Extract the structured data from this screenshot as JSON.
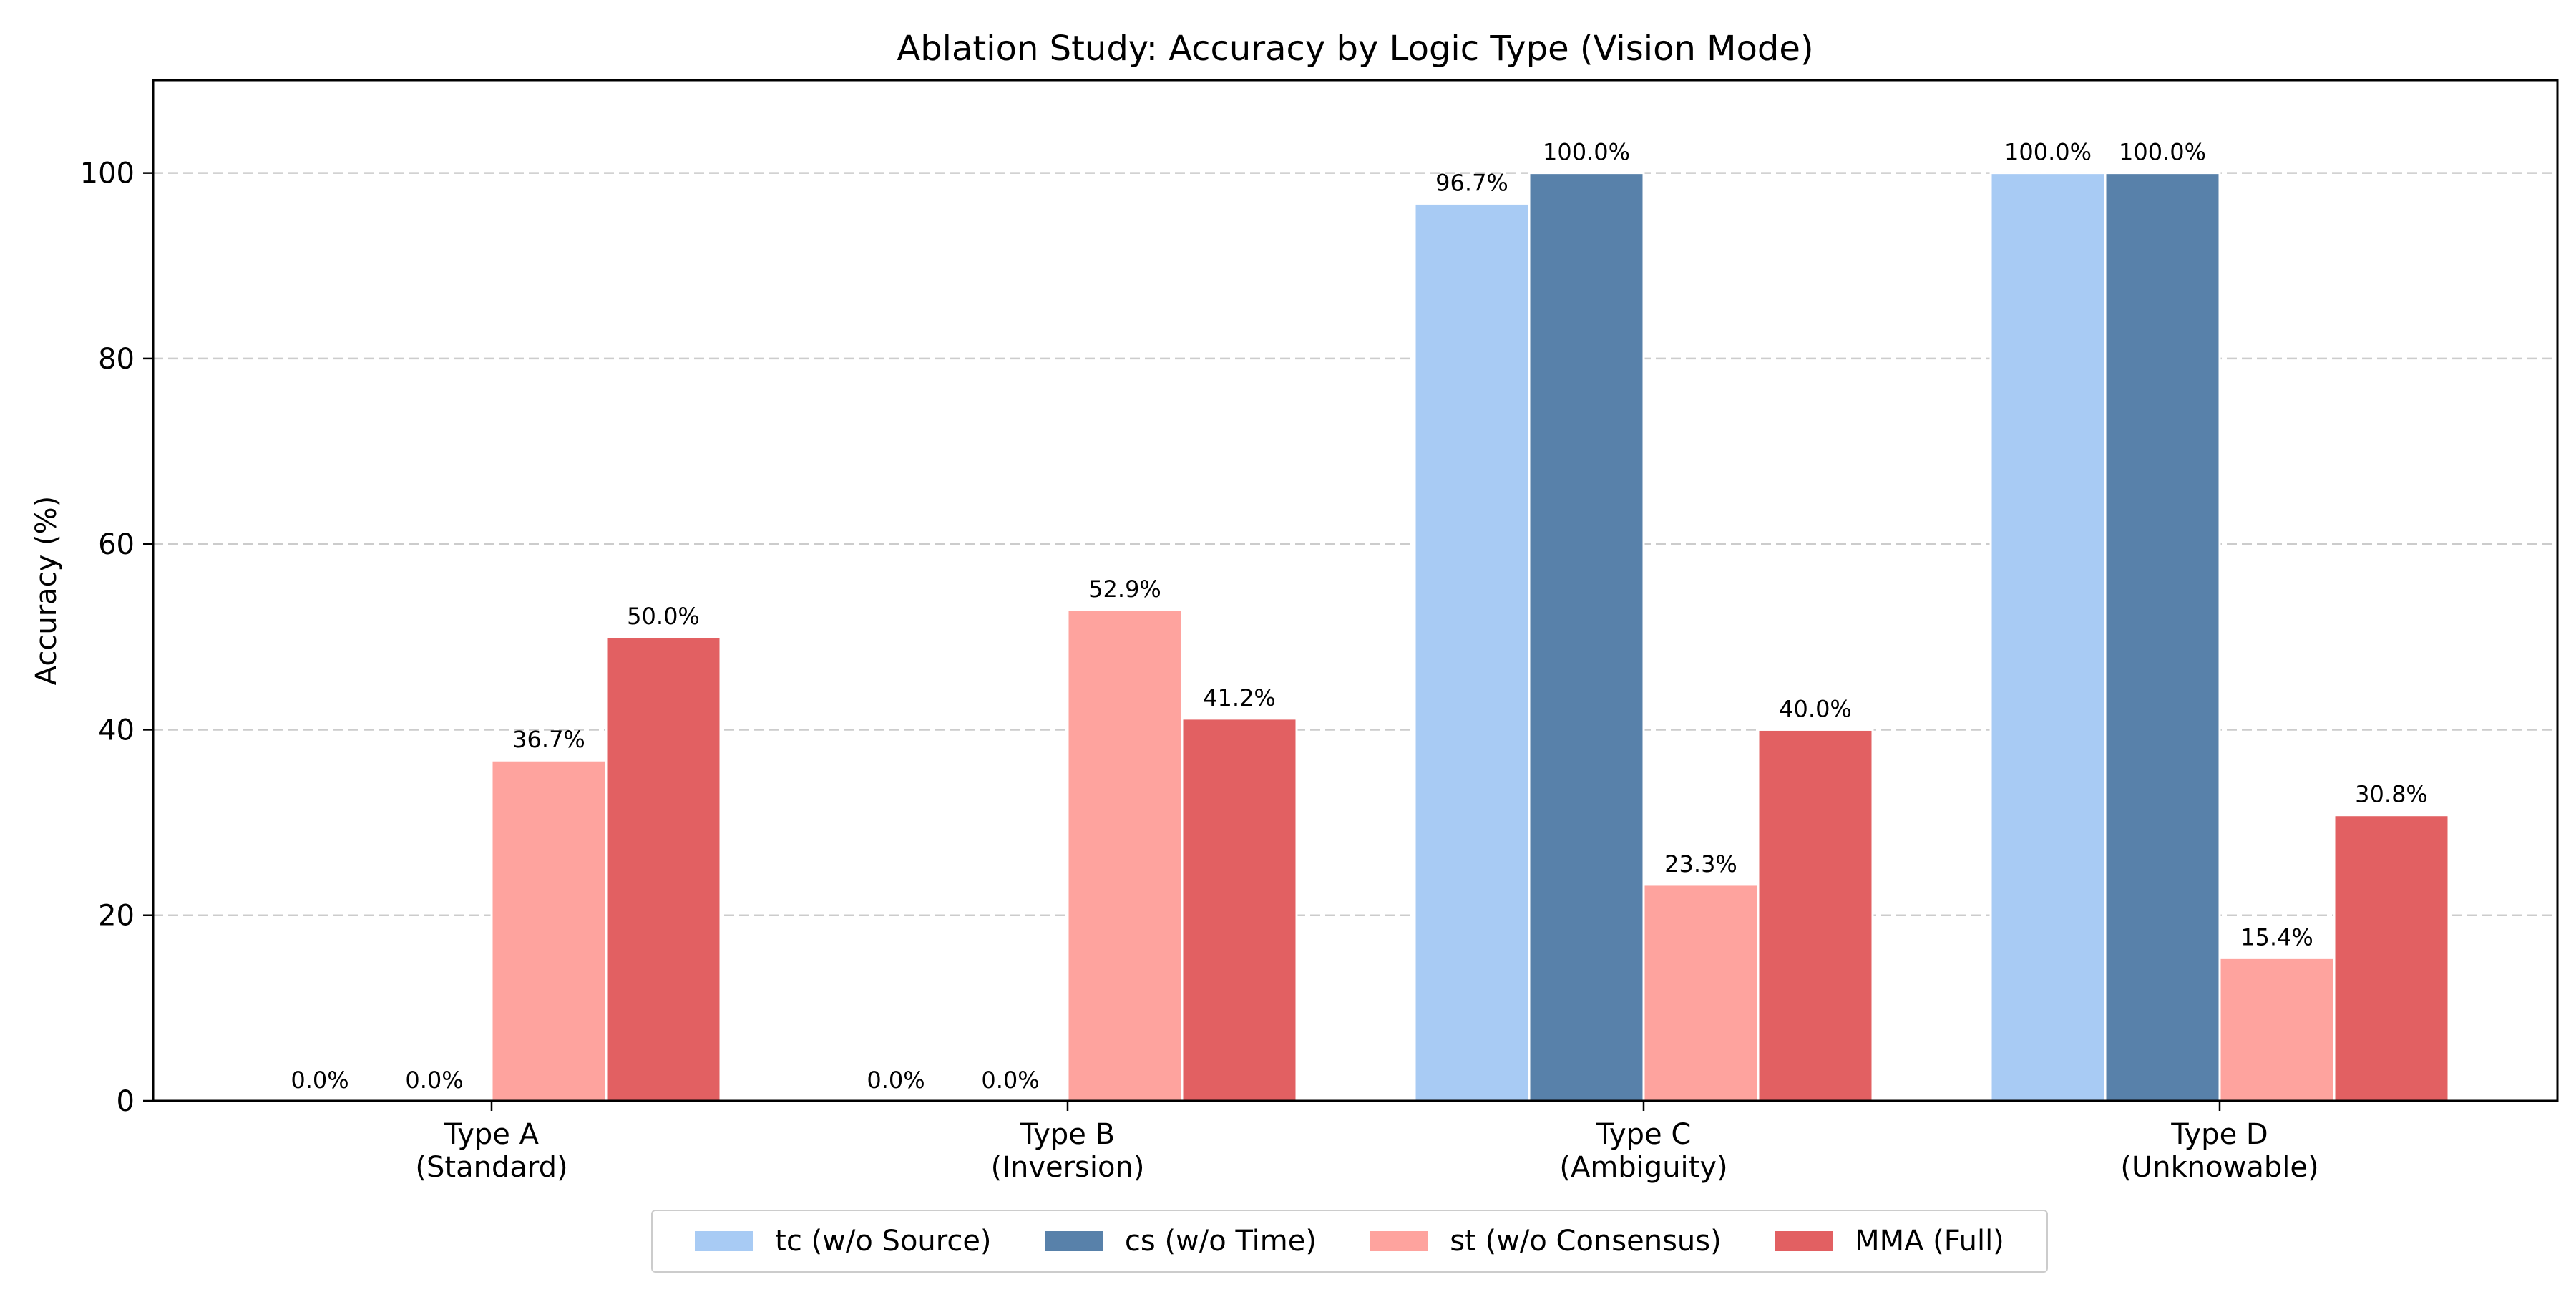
{
  "chart_data": {
    "type": "bar",
    "title": "Ablation Study: Accuracy by Logic Type (Vision Mode)",
    "xlabel": "",
    "ylabel": "Accuracy (%)",
    "ylim": [
      0,
      110
    ],
    "yticks": [
      0,
      20,
      40,
      60,
      80,
      100
    ],
    "grid": "y, dashed",
    "legend_position": "bottom-center",
    "categories": [
      "Type A\n(Standard)",
      "Type B\n(Inversion)",
      "Type C\n(Ambiguity)",
      "Type D\n(Unknowable)"
    ],
    "series": [
      {
        "name": "tc (w/o Source)",
        "color": "#a8cbf4",
        "values": [
          0.0,
          0.0,
          96.7,
          100.0
        ],
        "labels": [
          "0.0%",
          "0.0%",
          "96.7%",
          "100.0%"
        ]
      },
      {
        "name": "cs (w/o Time)",
        "color": "#5881aa",
        "values": [
          0.0,
          0.0,
          100.0,
          100.0
        ],
        "labels": [
          "0.0%",
          "0.0%",
          "100.0%",
          "100.0%"
        ]
      },
      {
        "name": "st (w/o Consensus)",
        "color": "#fea39e",
        "values": [
          36.7,
          52.9,
          23.3,
          15.4
        ],
        "labels": [
          "36.7%",
          "52.9%",
          "23.3%",
          "15.4%"
        ]
      },
      {
        "name": "MMA (Full)",
        "color": "#e26062",
        "values": [
          50.0,
          41.2,
          40.0,
          30.8
        ],
        "labels": [
          "50.0%",
          "41.2%",
          "40.0%",
          "30.8%"
        ]
      }
    ]
  }
}
